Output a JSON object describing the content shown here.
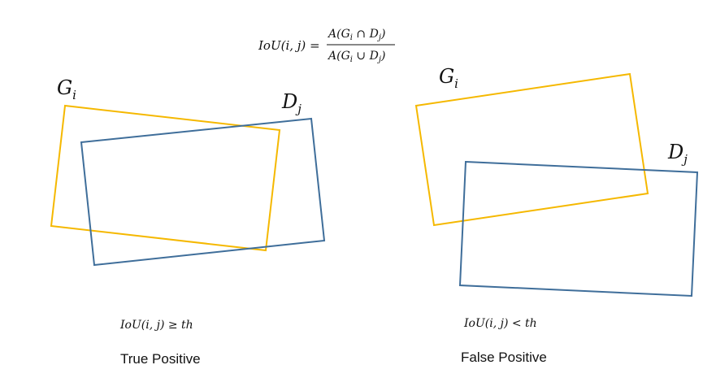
{
  "colors": {
    "ground_truth": "#F5B800",
    "detection": "#3F6E9A",
    "text": "#111111",
    "background": "#FFFFFF"
  },
  "formula": {
    "lhs": "IoU(i, j) =",
    "numerator": "A(G",
    "numerator_sub": "i",
    "numerator_op": " ∩ D",
    "numerator_sub2": "j",
    "numerator_close": ")",
    "denominator": "A(G",
    "denominator_sub": "i",
    "denominator_op": " ∪ D",
    "denominator_sub2": "j",
    "denominator_close": ")"
  },
  "left_panel": {
    "gt_label": "G",
    "gt_sub": "i",
    "det_label": "D",
    "det_sub": "j",
    "condition": "IoU(i, j)  ≥ th",
    "caption": "True Positive"
  },
  "right_panel": {
    "gt_label": "G",
    "gt_sub": "i",
    "det_label": "D",
    "det_sub": "j",
    "condition": "IoU(i, j) < th",
    "caption": "False Positive"
  }
}
